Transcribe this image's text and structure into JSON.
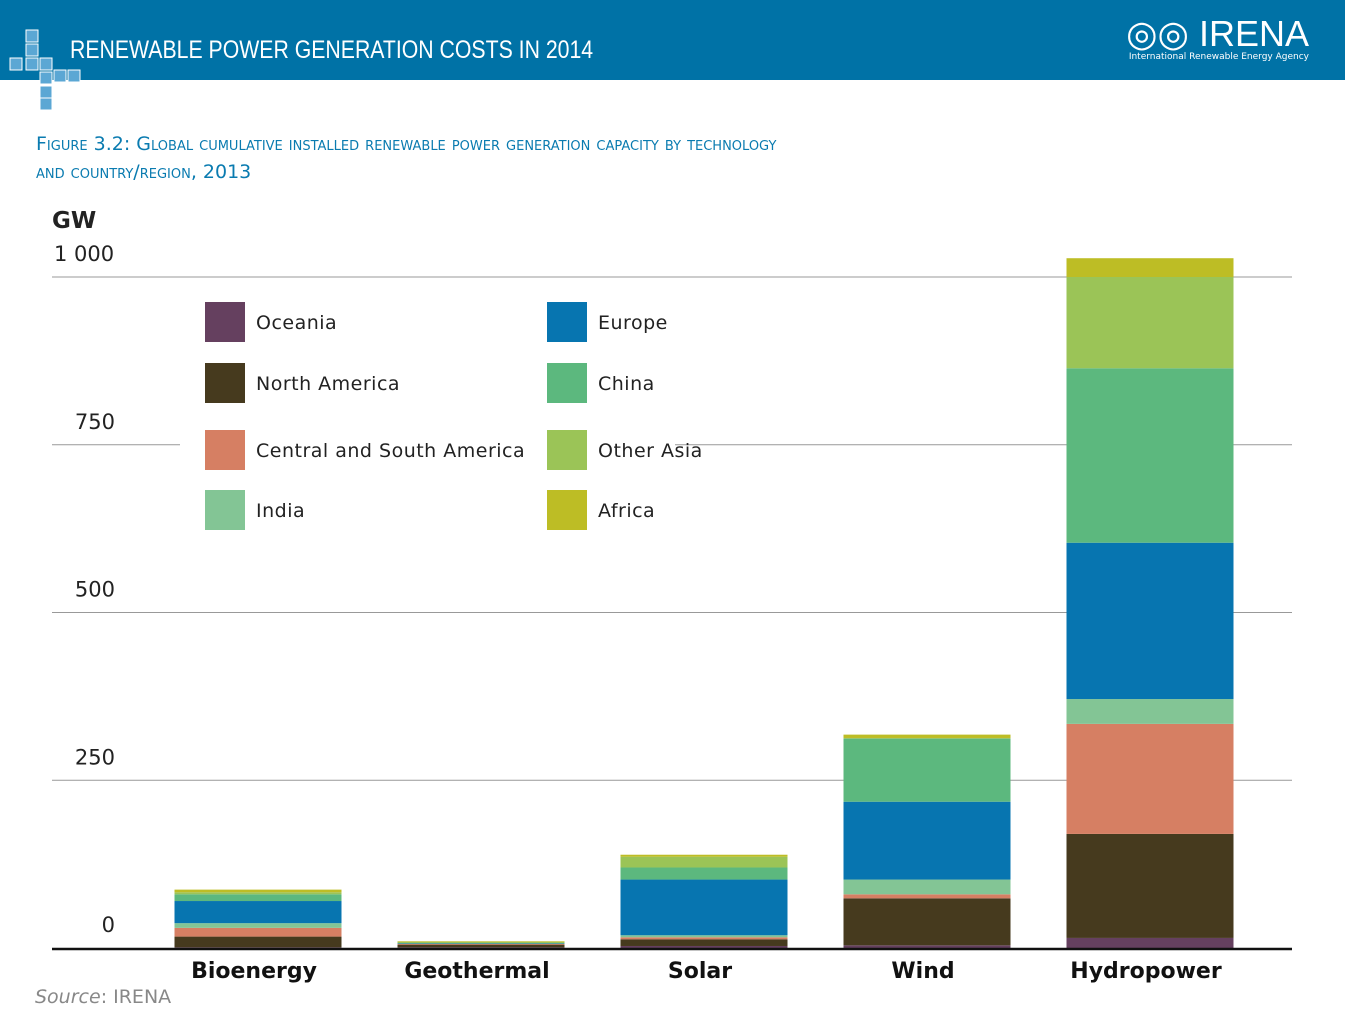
{
  "header": {
    "title": "RENEWABLE POWER GENERATION COSTS IN 2014",
    "logo": "IRENA",
    "logo_sub": "International Renewable Energy Agency"
  },
  "figure": {
    "line1": "Figure 3.2: Global cumulative installed renewable power generation capacity by technology",
    "line2": "and country/region, 2013"
  },
  "source": {
    "label": "Source",
    "text": ": IRENA"
  },
  "chart_data": {
    "type": "bar",
    "stacked": true,
    "title": "Global cumulative installed renewable power generation capacity by technology and country/region, 2013",
    "ylabel": "GW",
    "ylim": [
      0,
      1000
    ],
    "yticks": [
      0,
      250,
      500,
      750,
      1000
    ],
    "ytick_labels": [
      "0",
      "250",
      "500",
      "750",
      "1 000"
    ],
    "categories": [
      "Bioenergy",
      "Geothermal",
      "Solar",
      "Wind",
      "Hydropower"
    ],
    "legend_placement": "top-left",
    "series": [
      {
        "name": "Oceania",
        "color": "#65405f",
        "values": [
          1,
          1,
          3,
          4,
          15
        ]
      },
      {
        "name": "North America",
        "color": "#463a1e",
        "values": [
          16,
          4,
          10,
          70,
          155
        ]
      },
      {
        "name": "Central and South America",
        "color": "#d67f63",
        "values": [
          13,
          1,
          3,
          6,
          164
        ]
      },
      {
        "name": "India",
        "color": "#83c595",
        "values": [
          7,
          0,
          3,
          22,
          37
        ]
      },
      {
        "name": "Europe",
        "color": "#0775b0",
        "values": [
          33,
          1,
          83,
          116,
          233
        ]
      },
      {
        "name": "China",
        "color": "#5cb87e",
        "values": [
          10,
          0,
          18,
          94,
          260
        ]
      },
      {
        "name": "Other Asia",
        "color": "#9bc457",
        "values": [
          3,
          2,
          16,
          1,
          136
        ]
      },
      {
        "name": "Africa",
        "color": "#bdbd25",
        "values": [
          4,
          1,
          3,
          5,
          28
        ]
      }
    ]
  }
}
